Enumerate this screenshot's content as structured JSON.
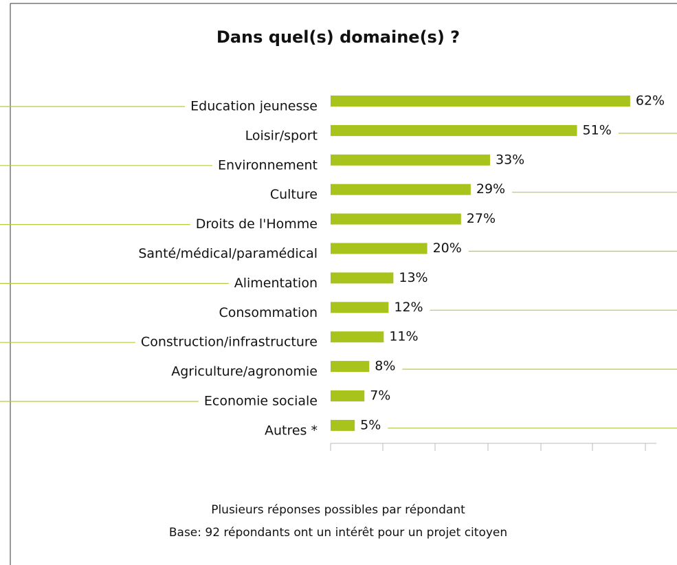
{
  "chart_data": {
    "type": "hbar",
    "title": "Dans quel(s) domaine(s) ?",
    "categories": [
      "Education jeunesse",
      "Loisir/sport",
      "Environnement",
      "Culture",
      "Droits de l'Homme",
      "Santé/médical/paramédical",
      "Alimentation",
      "Consommation",
      "Construction/infrastructure",
      "Agriculture/agronomie",
      "Economie sociale",
      "Autres *"
    ],
    "values": [
      62,
      51,
      33,
      29,
      27,
      20,
      13,
      12,
      11,
      8,
      7,
      5
    ],
    "value_labels": [
      "62%",
      "51%",
      "33%",
      "29%",
      "27%",
      "20%",
      "13%",
      "12%",
      "11%",
      "8%",
      "7%",
      "5%"
    ],
    "color": "#a8c41c",
    "xlim": [
      0,
      70
    ],
    "notes": [
      "Plusieurs réponses possibles par répondant",
      "Base: 92 répondants ont un intérêt pour un projet citoyen"
    ]
  }
}
